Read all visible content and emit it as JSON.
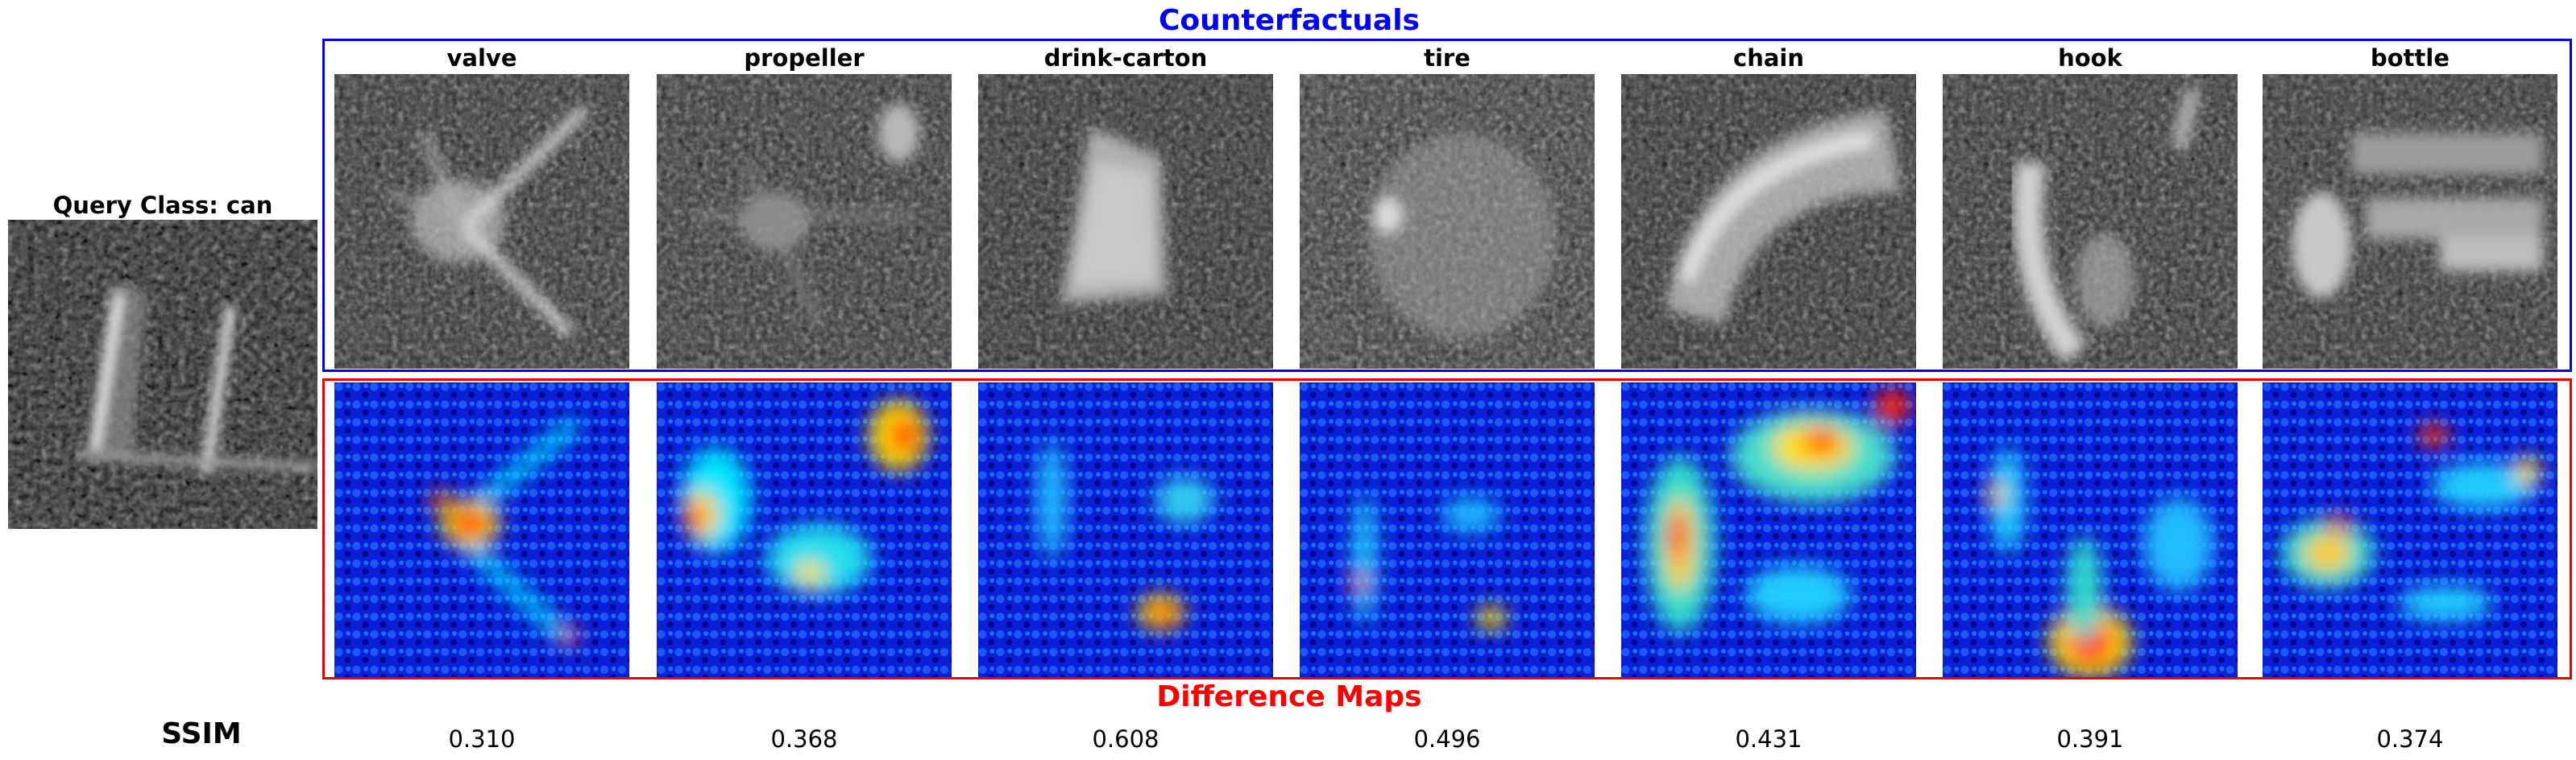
{
  "query": {
    "title": "Query Class: can"
  },
  "counterfactuals_heading": "Counterfactuals",
  "difference_maps_heading": "Difference Maps",
  "ssim_label": "SSIM",
  "colors": {
    "counterfactual_frame": "#0000ee",
    "difference_frame": "#ee0000",
    "heading_blue": "#0000ff",
    "heading_red": "#ff0000"
  },
  "columns": [
    {
      "class": "valve",
      "ssim": "0.310"
    },
    {
      "class": "propeller",
      "ssim": "0.368"
    },
    {
      "class": "drink-carton",
      "ssim": "0.608"
    },
    {
      "class": "tire",
      "ssim": "0.496"
    },
    {
      "class": "chain",
      "ssim": "0.431"
    },
    {
      "class": "hook",
      "ssim": "0.391"
    },
    {
      "class": "bottle",
      "ssim": "0.374"
    }
  ]
}
